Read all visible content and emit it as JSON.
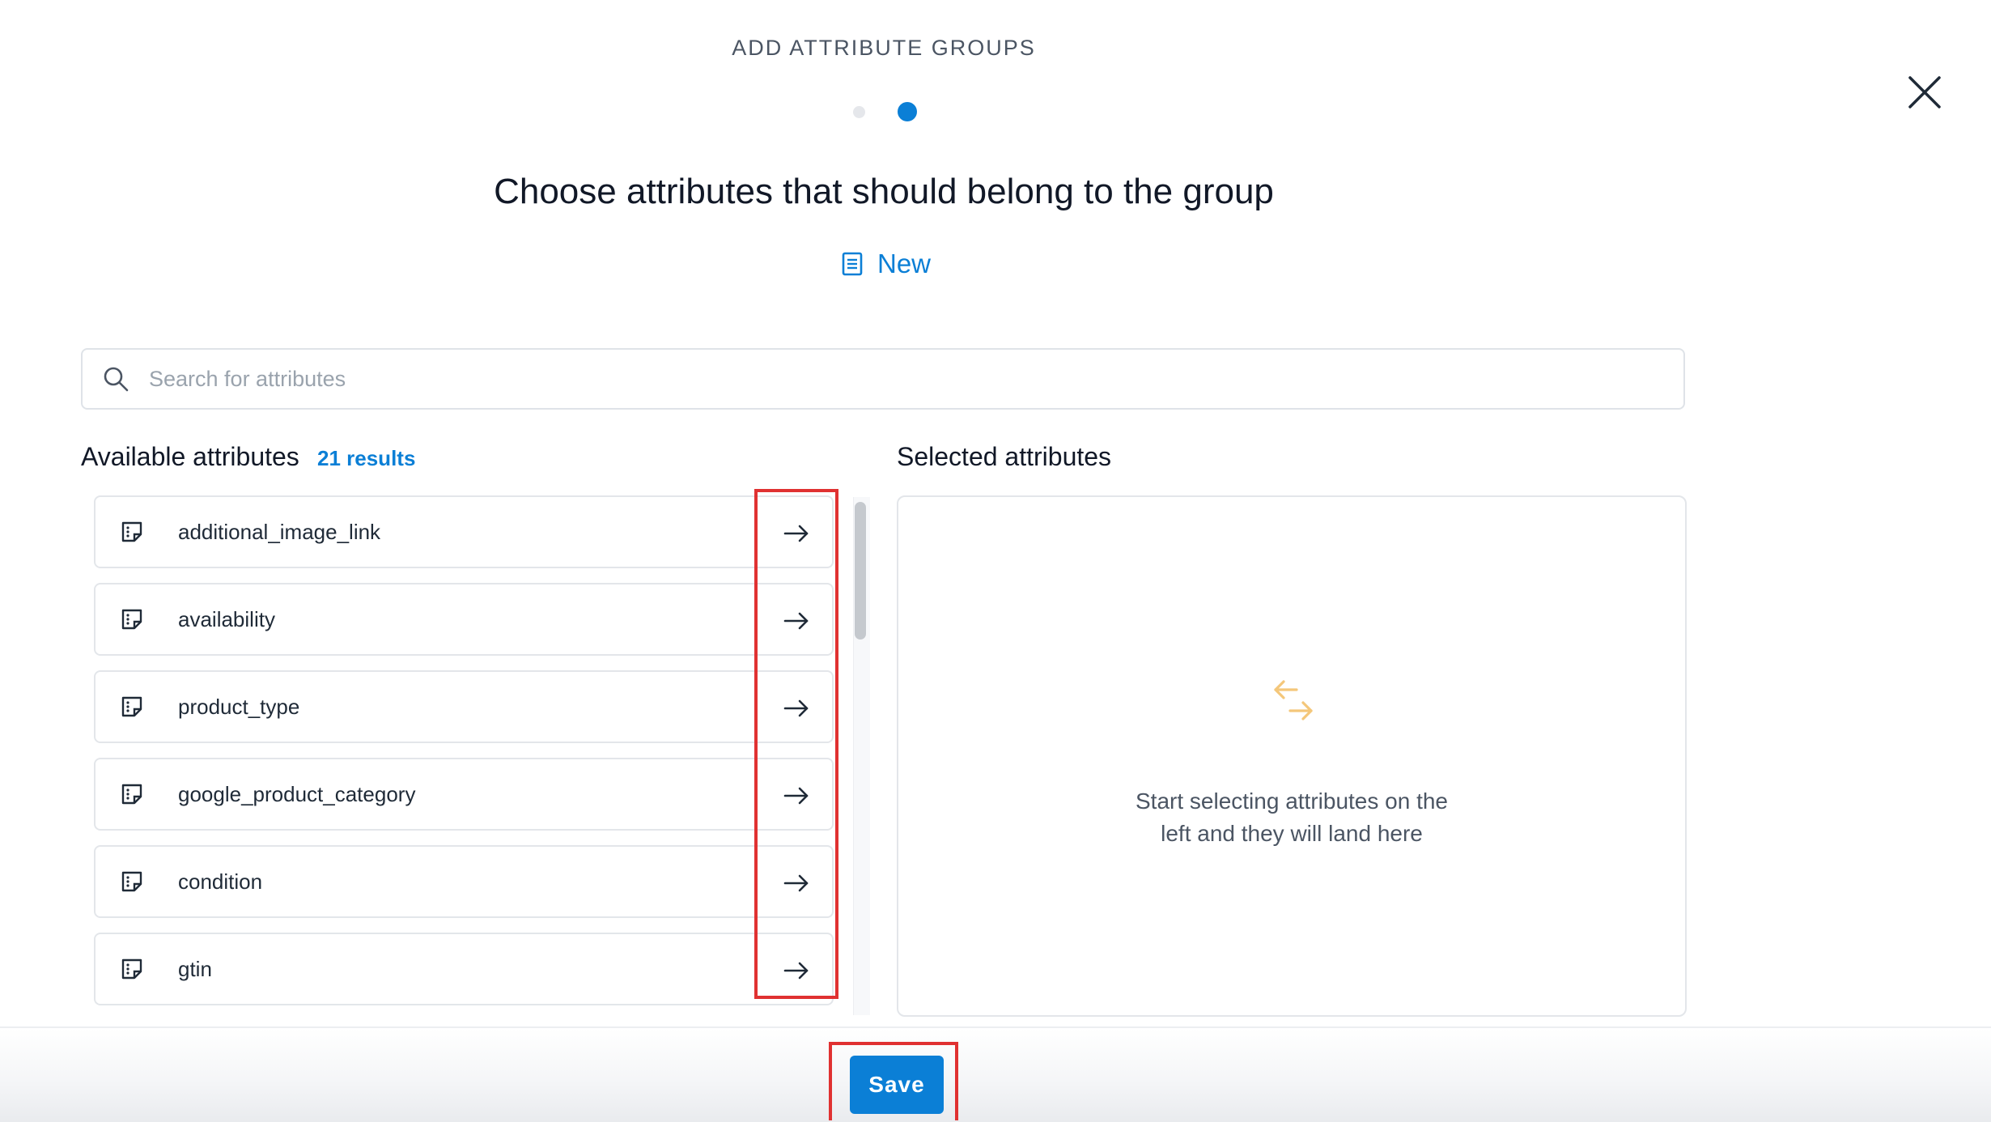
{
  "wizard": {
    "label": "ADD ATTRIBUTE GROUPS",
    "step_count": 2,
    "current_step": 2
  },
  "heading": "Choose attributes that should belong to the group",
  "group": {
    "name": "New",
    "icon": "document-icon"
  },
  "search": {
    "placeholder": "Search for attributes",
    "value": ""
  },
  "available": {
    "title": "Available attributes",
    "results": "21 results",
    "items": [
      {
        "label": "additional_image_link",
        "icon": "attribute-type-icon",
        "action_icon": "arrow-right-icon"
      },
      {
        "label": "availability",
        "icon": "attribute-type-icon",
        "action_icon": "arrow-right-icon"
      },
      {
        "label": "product_type",
        "icon": "attribute-type-icon",
        "action_icon": "arrow-right-icon"
      },
      {
        "label": "google_product_category",
        "icon": "attribute-type-icon",
        "action_icon": "arrow-right-icon"
      },
      {
        "label": "condition",
        "icon": "attribute-type-icon",
        "action_icon": "arrow-right-icon"
      },
      {
        "label": "gtin",
        "icon": "attribute-type-icon",
        "action_icon": "arrow-right-icon"
      }
    ]
  },
  "selected": {
    "title": "Selected attributes",
    "empty_line1": "Start selecting attributes on the",
    "empty_line2": "left and they will land here",
    "empty_icon": "swap-arrows-icon"
  },
  "footer": {
    "save_label": "Save"
  },
  "colors": {
    "accent": "#0b7fd6",
    "empty_icon": "#f4c77a",
    "highlight": "#e03131"
  }
}
